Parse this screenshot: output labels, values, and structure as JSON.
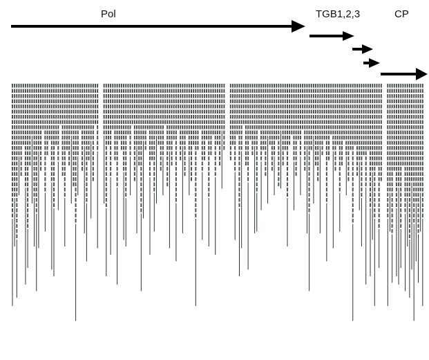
{
  "genes": [
    {
      "id": "pol",
      "label": "Pol"
    },
    {
      "id": "tgb1",
      "label": "TGB1,2,3"
    },
    {
      "id": "tgb2",
      "label": ""
    },
    {
      "id": "tgb3",
      "label": ""
    },
    {
      "id": "cp",
      "label": "CP"
    }
  ],
  "colors": {
    "arrow": "#000000",
    "bar_fill": "#4a4f4d",
    "bar_stroke": "#2f3432",
    "background": "#ffffff"
  },
  "coverage": {
    "description_source": "visual",
    "column_depths": [
      26,
      22,
      30,
      14,
      18,
      12,
      20,
      28,
      16,
      10,
      22,
      25,
      13,
      17,
      9,
      21,
      14,
      11,
      19,
      24,
      12,
      15,
      8,
      18,
      22,
      13,
      16,
      10,
      20,
      27,
      14,
      9,
      17,
      12,
      23,
      15,
      11,
      19,
      8,
      13,
      21,
      16,
      10,
      24,
      12,
      18,
      9,
      15,
      20,
      11,
      13,
      17,
      22,
      10,
      14,
      8,
      19,
      12,
      16,
      25,
      11,
      13,
      9,
      18,
      15,
      21,
      10,
      12,
      17,
      14,
      8,
      20,
      13,
      16,
      11,
      23,
      9,
      15,
      12,
      18,
      10,
      14,
      19,
      12,
      26,
      13,
      9,
      17,
      15,
      11,
      22,
      14,
      10,
      18,
      12,
      16,
      9,
      13,
      20,
      11,
      15,
      12,
      17,
      10,
      24,
      13,
      8,
      16,
      19,
      11,
      14,
      12,
      21,
      9,
      15,
      13,
      18,
      10,
      12,
      17,
      14,
      11,
      20,
      9,
      16,
      13,
      22,
      12,
      10,
      15,
      18,
      11,
      14,
      9,
      17,
      12,
      25,
      13,
      10,
      16,
      19,
      12,
      14,
      11,
      23,
      15,
      10,
      13,
      17,
      12,
      21,
      16,
      11,
      14,
      19,
      13,
      27,
      12,
      18,
      15,
      22,
      14,
      20,
      13,
      24,
      17,
      26,
      16,
      28,
      19,
      30,
      18,
      26,
      21,
      29,
      17,
      24,
      20,
      28,
      16,
      25,
      22,
      30,
      19,
      27,
      23,
      29,
      21,
      26
    ]
  }
}
